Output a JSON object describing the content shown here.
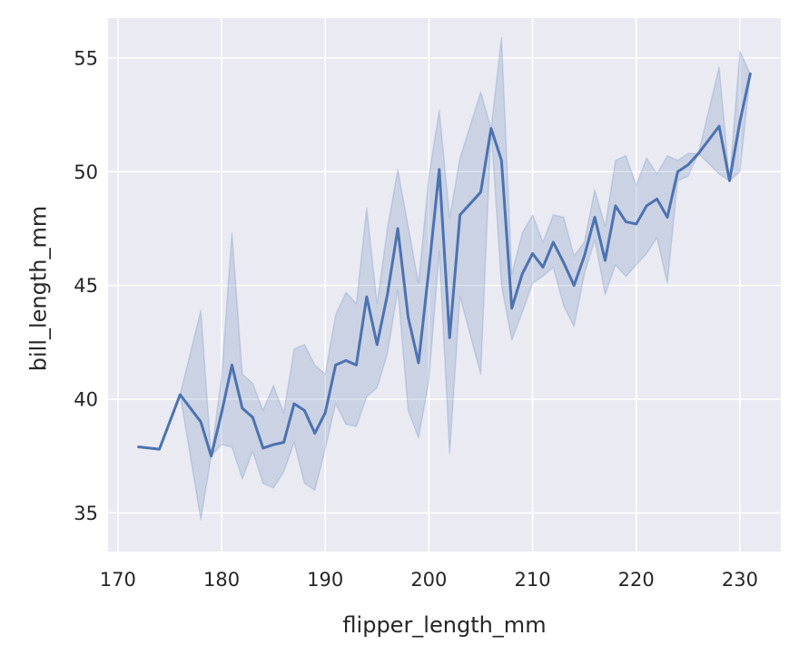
{
  "chart_data": {
    "type": "line",
    "title": "",
    "xlabel": "flipper_length_mm",
    "ylabel": "bill_length_mm",
    "xlim": [
      169.05,
      233.95
    ],
    "ylim": [
      33.3,
      56.75
    ],
    "xticks": [
      170,
      180,
      190,
      200,
      210,
      220,
      230
    ],
    "yticks": [
      35,
      40,
      45,
      50,
      55
    ],
    "grid": true,
    "legend": "none",
    "colors": {
      "background": "#eaeaf2",
      "grid": "#ffffff",
      "line": "#4c72b0",
      "band": "#4c72b0"
    },
    "series": [
      {
        "x": [
          172,
          174,
          176,
          178,
          179,
          180,
          181,
          182,
          183,
          184,
          185,
          186,
          187,
          188,
          189,
          190,
          191,
          192,
          193,
          194,
          195,
          196,
          197,
          198,
          199,
          200,
          201,
          202,
          203,
          205,
          206,
          207,
          208,
          209,
          210,
          211,
          212,
          213,
          214,
          215,
          216,
          217,
          218,
          219,
          220,
          221,
          222,
          223,
          224,
          225,
          226,
          228,
          229,
          230,
          231
        ],
        "y": [
          37.9,
          37.8,
          40.2,
          39.0,
          37.5,
          39.4,
          41.5,
          39.6,
          39.2,
          37.85,
          38.0,
          38.1,
          39.8,
          39.5,
          38.5,
          39.4,
          41.5,
          41.7,
          41.5,
          44.5,
          42.4,
          44.6,
          47.5,
          43.6,
          41.6,
          45.7,
          50.1,
          42.7,
          48.1,
          49.1,
          51.9,
          50.5,
          44.0,
          45.5,
          46.4,
          45.8,
          46.9,
          46.0,
          45.0,
          46.3,
          48.0,
          46.1,
          48.5,
          47.8,
          47.7,
          48.5,
          48.8,
          48.0,
          50.0,
          50.3,
          50.8,
          52.0,
          49.6,
          52.2,
          54.3
        ],
        "lower": [
          37.9,
          37.8,
          40.2,
          34.7,
          37.5,
          38.0,
          37.9,
          36.5,
          37.7,
          36.3,
          36.1,
          36.8,
          38.1,
          36.3,
          36.0,
          37.8,
          39.8,
          38.9,
          38.8,
          40.1,
          40.5,
          42.0,
          44.8,
          39.5,
          38.3,
          40.8,
          46.5,
          37.6,
          44.5,
          41.1,
          51.9,
          45.0,
          42.6,
          43.8,
          45.1,
          45.4,
          45.8,
          44.1,
          43.2,
          45.5,
          47.0,
          44.6,
          45.9,
          45.4,
          45.9,
          46.4,
          47.1,
          45.1,
          49.6,
          49.8,
          50.8,
          49.9,
          49.6,
          50.0,
          54.3
        ],
        "upper": [
          37.9,
          37.8,
          40.2,
          43.9,
          37.5,
          41.0,
          47.3,
          41.1,
          40.7,
          39.5,
          40.6,
          39.4,
          42.2,
          42.4,
          41.5,
          41.1,
          43.7,
          44.7,
          44.2,
          48.4,
          44.2,
          47.5,
          50.1,
          47.6,
          45.1,
          49.8,
          52.7,
          48.0,
          50.6,
          53.5,
          51.9,
          55.9,
          45.5,
          47.3,
          48.1,
          46.9,
          48.1,
          48.0,
          46.3,
          46.9,
          49.2,
          47.6,
          50.5,
          50.7,
          49.4,
          50.6,
          49.9,
          50.7,
          50.5,
          50.8,
          50.8,
          54.6,
          49.6,
          55.3,
          54.3
        ]
      }
    ]
  }
}
